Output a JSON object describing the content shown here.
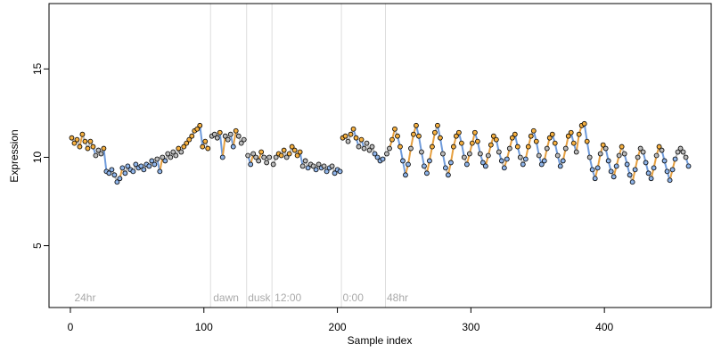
{
  "chart_data": {
    "type": "scatter",
    "title": "",
    "xlabel": "Sample index",
    "ylabel": "Expression",
    "xlim": [
      -16,
      480
    ],
    "ylim": [
      1.5,
      18.7
    ],
    "xticks": [
      0,
      100,
      200,
      300,
      400
    ],
    "yticks": [
      5,
      10,
      15
    ],
    "grid": false,
    "legend": "none",
    "colors": {
      "point_outline": "#000000",
      "orange_fill": "#f5b041",
      "blue_fill": "#8fb4e8",
      "gray_fill": "#bbbbbb",
      "line_gray": "#bbbbbb",
      "line_blue": "#6f9bdb",
      "line_orange": "#e6a040",
      "divider": "#dddddd",
      "annotation": "#aaaaaa"
    },
    "annotations": [
      {
        "x": 3,
        "label": "24hr"
      },
      {
        "x": 107,
        "label": "dawn"
      },
      {
        "x": 133,
        "label": "dusk"
      },
      {
        "x": 153,
        "label": "12:00"
      },
      {
        "x": 204,
        "label": "0:00"
      },
      {
        "x": 237,
        "label": "48hr"
      }
    ],
    "dividers": [
      105,
      132,
      151,
      203,
      236
    ],
    "segments": [
      {
        "name": "",
        "x_start": 1,
        "x_end": 104,
        "points": [
          [
            1,
            11.1
          ],
          [
            3,
            10.8
          ],
          [
            5,
            11.0
          ],
          [
            7,
            10.6
          ],
          [
            9,
            11.3
          ],
          [
            11,
            10.9
          ],
          [
            13,
            10.5
          ],
          [
            15,
            10.9
          ],
          [
            17,
            10.6
          ],
          [
            19,
            10.1
          ],
          [
            21,
            10.4
          ],
          [
            23,
            10.2
          ],
          [
            25,
            10.5
          ],
          [
            27,
            9.2
          ],
          [
            29,
            9.1
          ],
          [
            31,
            9.3
          ],
          [
            33,
            9.0
          ],
          [
            35,
            8.6
          ],
          [
            37,
            8.8
          ],
          [
            39,
            9.4
          ],
          [
            41,
            9.1
          ],
          [
            43,
            9.5
          ],
          [
            45,
            9.3
          ],
          [
            47,
            9.2
          ],
          [
            49,
            9.6
          ],
          [
            51,
            9.4
          ],
          [
            53,
            9.5
          ],
          [
            55,
            9.3
          ],
          [
            57,
            9.6
          ],
          [
            59,
            9.5
          ],
          [
            61,
            9.8
          ],
          [
            63,
            9.6
          ],
          [
            65,
            9.9
          ],
          [
            67,
            9.2
          ],
          [
            69,
            10.0
          ],
          [
            71,
            9.8
          ],
          [
            73,
            10.2
          ],
          [
            75,
            10.0
          ],
          [
            77,
            10.3
          ],
          [
            79,
            10.1
          ],
          [
            81,
            10.5
          ],
          [
            83,
            10.3
          ],
          [
            85,
            10.6
          ],
          [
            87,
            10.8
          ],
          [
            89,
            11.0
          ],
          [
            91,
            11.2
          ],
          [
            93,
            11.5
          ],
          [
            95,
            11.6
          ],
          [
            97,
            11.8
          ],
          [
            99,
            10.6
          ],
          [
            101,
            10.9
          ],
          [
            103,
            10.5
          ]
        ]
      },
      {
        "name": "",
        "x_start": 106,
        "x_end": 131,
        "points": [
          [
            106,
            11.2
          ],
          [
            108,
            11.3
          ],
          [
            110,
            11.1
          ],
          [
            112,
            11.4
          ],
          [
            114,
            10.0
          ],
          [
            116,
            11.2
          ],
          [
            118,
            11.0
          ],
          [
            120,
            11.3
          ],
          [
            122,
            10.6
          ],
          [
            124,
            11.5
          ],
          [
            126,
            11.2
          ],
          [
            128,
            10.8
          ],
          [
            130,
            11.0
          ]
        ]
      },
      {
        "name": "",
        "x_start": 133,
        "x_end": 150,
        "points": [
          [
            133,
            10.1
          ],
          [
            135,
            9.6
          ],
          [
            137,
            10.2
          ],
          [
            139,
            10.0
          ],
          [
            141,
            9.8
          ],
          [
            143,
            10.3
          ],
          [
            145,
            10.0
          ],
          [
            147,
            9.7
          ],
          [
            149,
            10.0
          ]
        ]
      },
      {
        "name": "",
        "x_start": 152,
        "x_end": 202,
        "points": [
          [
            152,
            9.6
          ],
          [
            154,
            10.0
          ],
          [
            156,
            10.2
          ],
          [
            158,
            10.1
          ],
          [
            160,
            10.4
          ],
          [
            162,
            10.0
          ],
          [
            164,
            10.2
          ],
          [
            166,
            10.6
          ],
          [
            168,
            10.4
          ],
          [
            170,
            10.1
          ],
          [
            172,
            10.3
          ],
          [
            174,
            9.5
          ],
          [
            176,
            9.8
          ],
          [
            178,
            9.4
          ],
          [
            180,
            9.6
          ],
          [
            182,
            9.5
          ],
          [
            184,
            9.3
          ],
          [
            186,
            9.6
          ],
          [
            188,
            9.4
          ],
          [
            190,
            9.5
          ],
          [
            192,
            9.2
          ],
          [
            194,
            9.4
          ],
          [
            196,
            9.5
          ],
          [
            198,
            9.1
          ],
          [
            200,
            9.3
          ],
          [
            202,
            9.2
          ]
        ]
      },
      {
        "name": "",
        "x_start": 204,
        "x_end": 235,
        "points": [
          [
            204,
            11.1
          ],
          [
            206,
            11.2
          ],
          [
            208,
            10.9
          ],
          [
            210,
            11.3
          ],
          [
            212,
            11.6
          ],
          [
            214,
            11.1
          ],
          [
            216,
            10.6
          ],
          [
            218,
            11.0
          ],
          [
            220,
            10.5
          ],
          [
            222,
            10.8
          ],
          [
            224,
            10.4
          ],
          [
            226,
            10.6
          ],
          [
            228,
            10.2
          ],
          [
            230,
            10.0
          ],
          [
            232,
            9.8
          ],
          [
            234,
            9.9
          ]
        ]
      },
      {
        "name": "",
        "x_start": 237,
        "x_end": 463,
        "points": [
          [
            237,
            10.2
          ],
          [
            239,
            10.5
          ],
          [
            241,
            11.0
          ],
          [
            243,
            11.6
          ],
          [
            245,
            11.2
          ],
          [
            247,
            10.6
          ],
          [
            249,
            9.8
          ],
          [
            251,
            9.0
          ],
          [
            253,
            9.6
          ],
          [
            255,
            10.5
          ],
          [
            257,
            11.3
          ],
          [
            259,
            11.8
          ],
          [
            261,
            11.2
          ],
          [
            263,
            10.3
          ],
          [
            265,
            9.5
          ],
          [
            267,
            9.1
          ],
          [
            269,
            9.8
          ],
          [
            271,
            10.6
          ],
          [
            273,
            11.4
          ],
          [
            275,
            11.8
          ],
          [
            277,
            11.1
          ],
          [
            279,
            10.2
          ],
          [
            281,
            9.4
          ],
          [
            283,
            9.0
          ],
          [
            285,
            9.7
          ],
          [
            287,
            10.6
          ],
          [
            289,
            11.2
          ],
          [
            291,
            11.4
          ],
          [
            293,
            10.8
          ],
          [
            295,
            10.0
          ],
          [
            297,
            9.6
          ],
          [
            299,
            10.2
          ],
          [
            301,
            10.8
          ],
          [
            303,
            11.4
          ],
          [
            305,
            10.9
          ],
          [
            307,
            10.2
          ],
          [
            309,
            9.7
          ],
          [
            311,
            9.5
          ],
          [
            313,
            10.1
          ],
          [
            315,
            10.7
          ],
          [
            317,
            11.2
          ],
          [
            319,
            11.0
          ],
          [
            321,
            10.3
          ],
          [
            323,
            9.8
          ],
          [
            325,
            9.4
          ],
          [
            327,
            9.9
          ],
          [
            329,
            10.5
          ],
          [
            331,
            11.1
          ],
          [
            333,
            11.3
          ],
          [
            335,
            10.6
          ],
          [
            337,
            10.0
          ],
          [
            339,
            9.6
          ],
          [
            341,
            9.9
          ],
          [
            343,
            10.6
          ],
          [
            345,
            11.2
          ],
          [
            347,
            11.5
          ],
          [
            349,
            10.9
          ],
          [
            351,
            10.1
          ],
          [
            353,
            9.6
          ],
          [
            355,
            9.8
          ],
          [
            357,
            10.5
          ],
          [
            359,
            11.1
          ],
          [
            361,
            11.3
          ],
          [
            363,
            10.8
          ],
          [
            365,
            10.1
          ],
          [
            367,
            9.5
          ],
          [
            369,
            9.8
          ],
          [
            371,
            10.5
          ],
          [
            373,
            11.2
          ],
          [
            375,
            11.4
          ],
          [
            377,
            10.8
          ],
          [
            379,
            10.3
          ],
          [
            381,
            11.3
          ],
          [
            383,
            11.8
          ],
          [
            385,
            11.9
          ],
          [
            387,
            10.9
          ],
          [
            389,
            10.0
          ],
          [
            391,
            9.3
          ],
          [
            393,
            8.8
          ],
          [
            395,
            9.4
          ],
          [
            397,
            10.2
          ],
          [
            399,
            10.7
          ],
          [
            401,
            10.5
          ],
          [
            403,
            9.8
          ],
          [
            405,
            9.2
          ],
          [
            407,
            8.9
          ],
          [
            409,
            9.5
          ],
          [
            411,
            10.1
          ],
          [
            413,
            10.6
          ],
          [
            415,
            10.2
          ],
          [
            417,
            9.6
          ],
          [
            419,
            9.0
          ],
          [
            421,
            8.6
          ],
          [
            423,
            9.3
          ],
          [
            425,
            10.0
          ],
          [
            427,
            10.5
          ],
          [
            429,
            10.3
          ],
          [
            431,
            9.7
          ],
          [
            433,
            9.1
          ],
          [
            435,
            8.8
          ],
          [
            437,
            9.4
          ],
          [
            439,
            10.1
          ],
          [
            441,
            10.6
          ],
          [
            443,
            10.4
          ],
          [
            445,
            9.8
          ],
          [
            447,
            9.2
          ],
          [
            449,
            8.7
          ],
          [
            451,
            9.3
          ],
          [
            453,
            9.9
          ],
          [
            455,
            10.3
          ],
          [
            457,
            10.5
          ],
          [
            459,
            10.3
          ],
          [
            461,
            10.0
          ],
          [
            463,
            9.5
          ]
        ]
      }
    ]
  }
}
